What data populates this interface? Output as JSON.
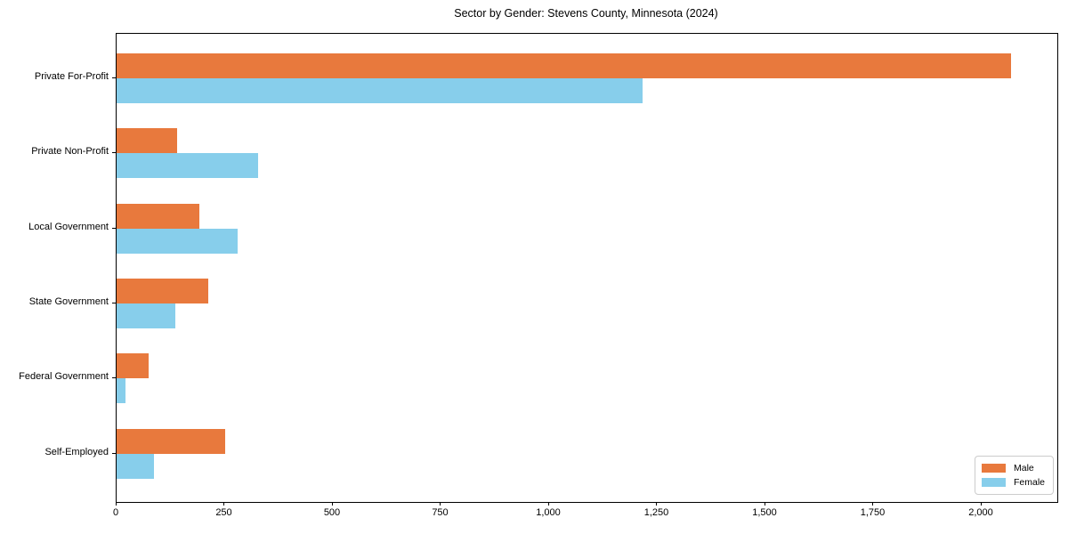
{
  "chart_data": {
    "type": "bar",
    "orientation": "horizontal",
    "title": "Sector by Gender: Stevens County, Minnesota (2024)",
    "categories": [
      "Private For-Profit",
      "Private Non-Profit",
      "Local Government",
      "State Government",
      "Federal Government",
      "Self-Employed"
    ],
    "series": [
      {
        "name": "Male",
        "color": "#e8793d",
        "values": [
          2068,
          139,
          192,
          211,
          74,
          251
        ]
      },
      {
        "name": "Female",
        "color": "#87ceeb",
        "values": [
          1217,
          327,
          280,
          135,
          21,
          86
        ]
      }
    ],
    "xlim": [
      0,
      2175
    ],
    "xticks": [
      0,
      250,
      500,
      750,
      1000,
      1250,
      1500,
      1750,
      2000
    ],
    "xtick_labels": [
      "0",
      "250",
      "500",
      "750",
      "1,000",
      "1,250",
      "1,500",
      "1,750",
      "2,000"
    ],
    "xlabel": "",
    "ylabel": "",
    "grid": false,
    "legend_position": "lower right",
    "background_color": "#ffffff",
    "spine_color": "#000000"
  }
}
